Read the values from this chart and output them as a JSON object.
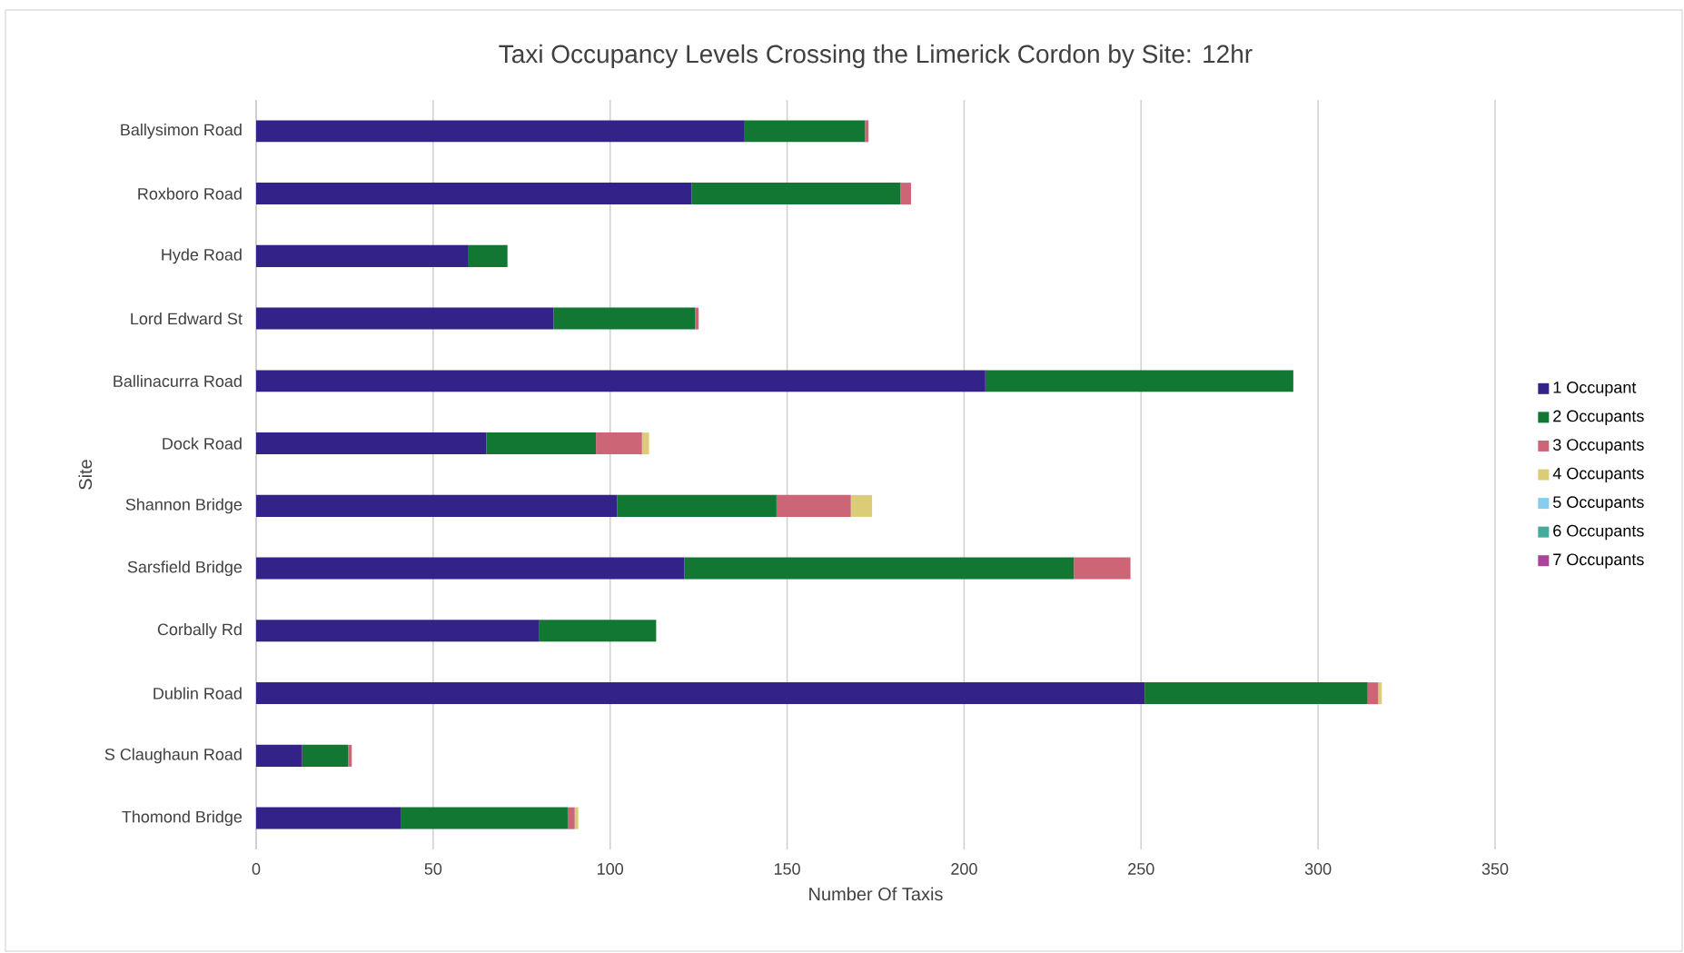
{
  "chart_data": {
    "type": "bar",
    "orientation": "horizontal",
    "stacked": true,
    "title": "Taxi Occupancy Levels Crossing the Limerick Cordon by Site: 12hr",
    "xlabel": "Number Of Taxis",
    "ylabel": "Site",
    "categories": [
      "Ballysimon Road",
      "Roxboro Road",
      "Hyde Road",
      "Lord Edward St",
      "Ballinacurra Road",
      "Dock Road",
      "Shannon Bridge",
      "Sarsfield Bridge",
      "Corbally Rd",
      "Dublin Road",
      "S Claughaun Road",
      "Thomond Bridge"
    ],
    "series": [
      {
        "name": "1 Occupant",
        "color": "#332288",
        "values": [
          138,
          123,
          60,
          84,
          206,
          65,
          102,
          121,
          80,
          251,
          13,
          41
        ]
      },
      {
        "name": "2 Occupants",
        "color": "#117733",
        "values": [
          34,
          59,
          11,
          40,
          87,
          31,
          45,
          110,
          33,
          63,
          13,
          47
        ]
      },
      {
        "name": "3 Occupants",
        "color": "#cc6677",
        "values": [
          1,
          3,
          0,
          1,
          0,
          13,
          21,
          16,
          0,
          3,
          1,
          2
        ]
      },
      {
        "name": "4 Occupants",
        "color": "#ddcc77",
        "values": [
          0,
          0,
          0,
          0,
          0,
          2,
          6,
          0,
          0,
          1,
          0,
          1
        ]
      },
      {
        "name": "5 Occupants",
        "color": "#88ccee",
        "values": [
          0,
          0,
          0,
          0,
          0,
          0,
          0,
          0,
          0,
          0,
          0,
          0
        ]
      },
      {
        "name": "6 Occupants",
        "color": "#44aa99",
        "values": [
          0,
          0,
          0,
          0,
          0,
          0,
          0,
          0,
          0,
          0,
          0,
          0
        ]
      },
      {
        "name": "7 Occupants",
        "color": "#aa4499",
        "values": [
          0,
          0,
          0,
          0,
          0,
          0,
          0,
          0,
          0,
          0,
          0,
          0
        ]
      }
    ],
    "xlim": [
      0,
      350
    ],
    "xticks": [
      0,
      50,
      100,
      150,
      200,
      250,
      300,
      350
    ],
    "grid": "x",
    "legend": "right"
  }
}
